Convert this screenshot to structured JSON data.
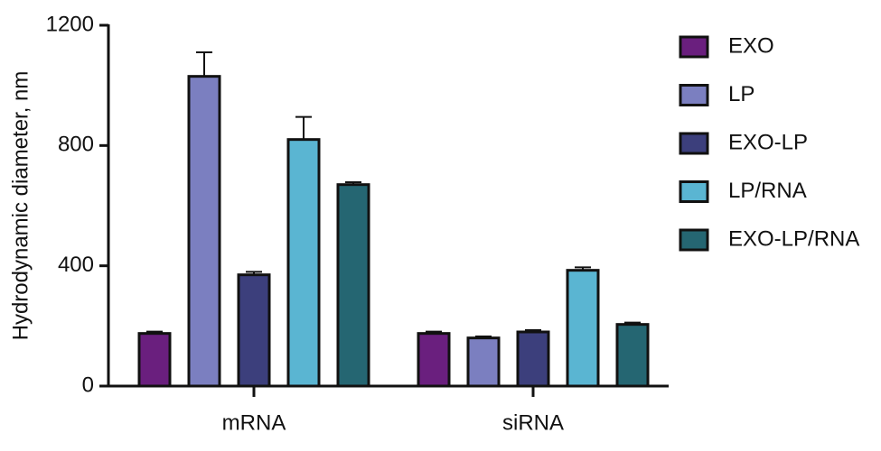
{
  "chart_data": {
    "type": "bar",
    "y_label": "Hydrodynamic diameter, nm",
    "categories": [
      "mRNA",
      "siRNA"
    ],
    "series": [
      {
        "name": "EXO",
        "color": "#6a1f7e",
        "values": [
          175,
          175
        ],
        "errors": [
          6,
          6
        ]
      },
      {
        "name": "LP",
        "color": "#7b7fc0",
        "values": [
          1030,
          160
        ],
        "errors": [
          80,
          5
        ]
      },
      {
        "name": "EXO-LP",
        "color": "#3c3f7c",
        "values": [
          370,
          180
        ],
        "errors": [
          10,
          6
        ]
      },
      {
        "name": "LP/RNA",
        "color": "#5ab5d2",
        "values": [
          820,
          385
        ],
        "errors": [
          75,
          10
        ]
      },
      {
        "name": "EXO-LP/RNA",
        "color": "#256672",
        "values": [
          670,
          205
        ],
        "errors": [
          8,
          6
        ]
      }
    ],
    "ylim": [
      0,
      1200
    ],
    "yticks": [
      0,
      400,
      800,
      1200
    ]
  }
}
